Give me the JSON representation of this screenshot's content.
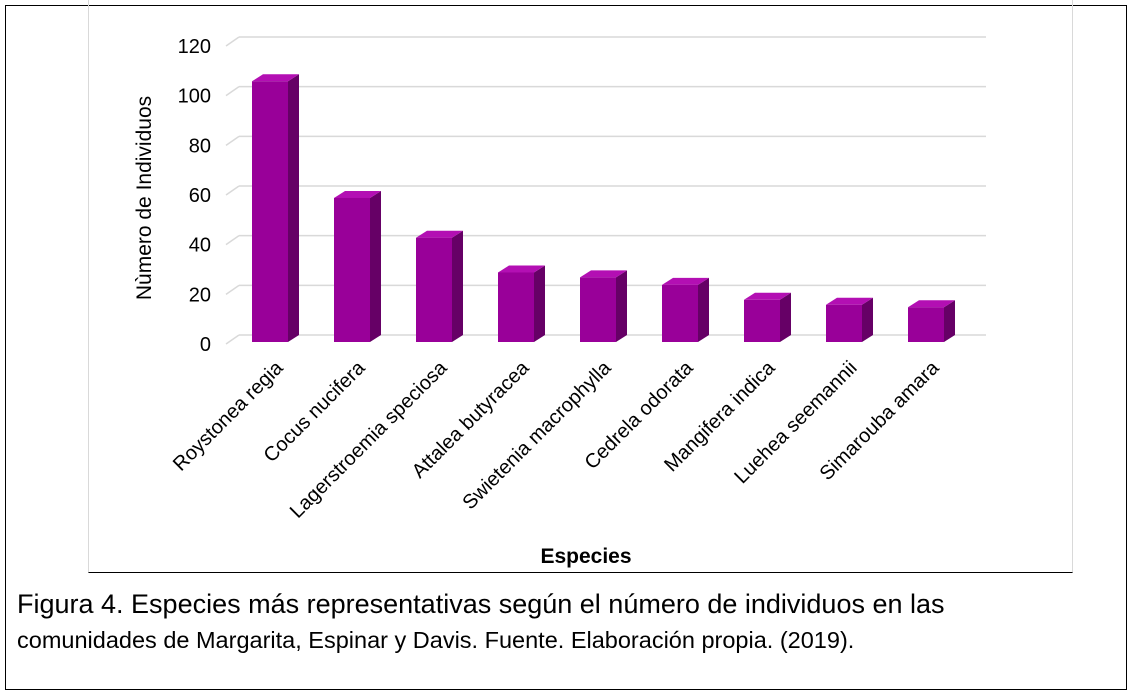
{
  "chart_data": {
    "type": "bar",
    "categories": [
      "Roystonea regia",
      "Cocus nucifera",
      "Lagerstroemia speciosa",
      "Attalea butyracea",
      "Swietenia macrophylla",
      "Cedrela odorata",
      "Mangifera indica",
      "Luehea seemannii",
      "Simarouba  amara"
    ],
    "values": [
      105,
      58,
      42,
      28,
      26,
      23,
      17,
      15,
      14
    ],
    "title": "",
    "xlabel": "Especies",
    "ylabel": "Nùmero de Individuos",
    "ylim": [
      0,
      120
    ],
    "yticks": [
      0,
      20,
      40,
      60,
      80,
      100,
      120
    ],
    "grid": true,
    "legend": "none",
    "style": "3d-column",
    "colors": {
      "front": "#990099",
      "side": "#660066",
      "top": "#b30fb3",
      "grid": "#d9d9d9"
    }
  },
  "caption": {
    "line1": "Figura 4. Especies más representativas según el número de individuos en las",
    "line2": "comunidades de Margarita, Espinar y Davis. Fuente. Elaboración propia. (2019)."
  }
}
